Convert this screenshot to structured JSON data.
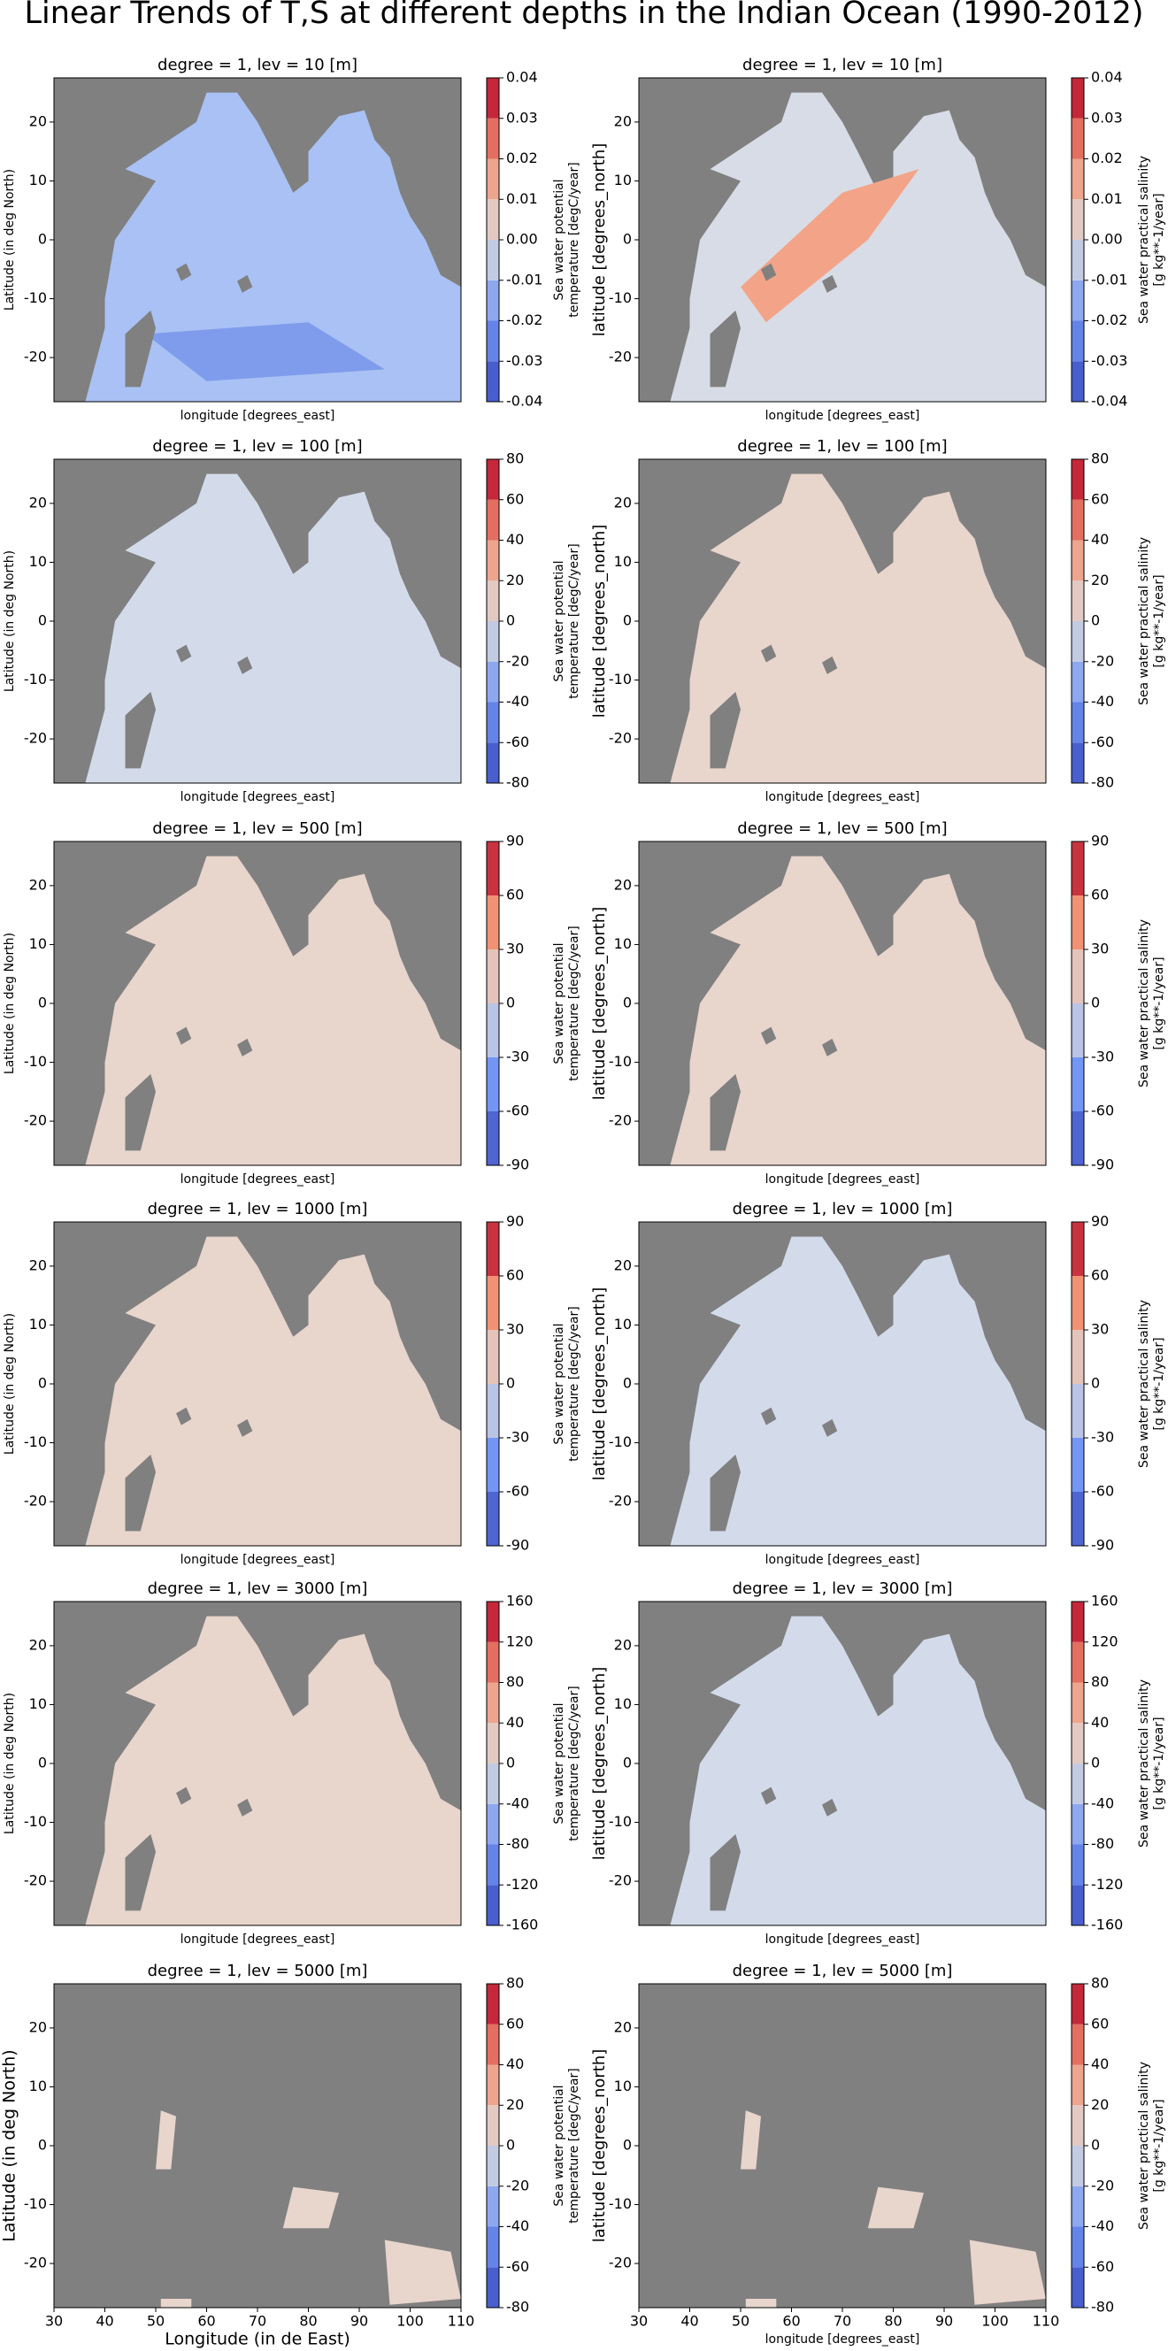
{
  "title": "Linear Trends of T,S at different depths in the Indian Ocean (1990-2012)",
  "chart_data": [
    {
      "type": "contour",
      "title": "degree = 1, lev = 10 [m]",
      "xlabel": "longitude [degrees_east]",
      "ylabel": "Latitude (in deg North)",
      "xlim": [
        30,
        110
      ],
      "ylim": [
        -27.5,
        27.5
      ],
      "yticks": [
        -20,
        -10,
        0,
        10,
        20
      ],
      "colorbar": {
        "label": [
          "Sea water potential",
          "temperature [degC/year]"
        ],
        "colormap": "coolwarm",
        "lim": [
          -0.04,
          0.04
        ],
        "ticks": [
          -0.04,
          -0.03,
          -0.02,
          -0.01,
          {
            "value": 0,
            "label": "0.00"
          },
          0.01,
          0.02,
          0.03,
          0.04
        ]
      }
    },
    {
      "type": "contour",
      "title": "degree = 1, lev = 10 [m]",
      "xlabel": "longitude [degrees_east]",
      "ylabel": "latitude [degrees_north]",
      "xlim": [
        30,
        110
      ],
      "ylim": [
        -27.5,
        27.5
      ],
      "yticks": [
        -20,
        -10,
        0,
        10,
        20
      ],
      "colorbar": {
        "label": [
          "Sea water practical salinity",
          "[g kg**-1/year]"
        ],
        "colormap": "coolwarm",
        "lim": [
          -0.04,
          0.04
        ],
        "ticks": [
          -0.04,
          -0.03,
          -0.02,
          -0.01,
          {
            "value": 0,
            "label": "0.00"
          },
          0.01,
          0.02,
          0.03,
          0.04
        ]
      }
    },
    {
      "type": "contour",
      "title": "degree = 1, lev = 100 [m]",
      "xlabel": "longitude [degrees_east]",
      "ylabel": "Latitude (in deg North)",
      "xlim": [
        30,
        110
      ],
      "ylim": [
        -27.5,
        27.5
      ],
      "yticks": [
        -20,
        -10,
        0,
        10,
        20
      ],
      "colorbar": {
        "label": [
          "Sea water potential",
          "temperature [degC/year]"
        ],
        "colormap": "coolwarm",
        "lim": [
          -80,
          80
        ],
        "ticks": [
          -80,
          -60,
          -40,
          -20,
          0,
          20,
          40,
          60,
          80
        ]
      }
    },
    {
      "type": "contour",
      "title": "degree = 1, lev = 100 [m]",
      "xlabel": "longitude [degrees_east]",
      "ylabel": "latitude [degrees_north]",
      "xlim": [
        30,
        110
      ],
      "ylim": [
        -27.5,
        27.5
      ],
      "yticks": [
        -20,
        -10,
        0,
        10,
        20
      ],
      "colorbar": {
        "label": [
          "Sea water practical salinity",
          "[g kg**-1/year]"
        ],
        "colormap": "coolwarm",
        "lim": [
          -80,
          80
        ],
        "ticks": [
          -80,
          -60,
          -40,
          -20,
          0,
          20,
          40,
          60,
          80
        ]
      }
    },
    {
      "type": "contour",
      "title": "degree = 1, lev = 500 [m]",
      "xlabel": "longitude [degrees_east]",
      "ylabel": "Latitude (in deg North)",
      "xlim": [
        30,
        110
      ],
      "ylim": [
        -27.5,
        27.5
      ],
      "yticks": [
        -20,
        -10,
        0,
        10,
        20
      ],
      "colorbar": {
        "label": [
          "Sea water potential",
          "temperature [degC/year]"
        ],
        "colormap": "coolwarm",
        "lim": [
          -90,
          90
        ],
        "ticks": [
          -90,
          -60,
          -30,
          0,
          30,
          60,
          90
        ]
      }
    },
    {
      "type": "contour",
      "title": "degree = 1, lev = 500 [m]",
      "xlabel": "longitude [degrees_east]",
      "ylabel": "latitude [degrees_north]",
      "xlim": [
        30,
        110
      ],
      "ylim": [
        -27.5,
        27.5
      ],
      "yticks": [
        -20,
        -10,
        0,
        10,
        20
      ],
      "colorbar": {
        "label": [
          "Sea water practical salinity",
          "[g kg**-1/year]"
        ],
        "colormap": "coolwarm",
        "lim": [
          -90,
          90
        ],
        "ticks": [
          -90,
          -60,
          -30,
          0,
          30,
          60,
          90
        ]
      }
    },
    {
      "type": "contour",
      "title": "degree = 1, lev = 1000 [m]",
      "xlabel": "longitude [degrees_east]",
      "ylabel": "Latitude (in deg North)",
      "xlim": [
        30,
        110
      ],
      "ylim": [
        -27.5,
        27.5
      ],
      "yticks": [
        -20,
        -10,
        0,
        10,
        20
      ],
      "colorbar": {
        "label": [
          "Sea water potential",
          "temperature [degC/year]"
        ],
        "colormap": "coolwarm",
        "lim": [
          -90,
          90
        ],
        "ticks": [
          -90,
          -60,
          -30,
          0,
          30,
          60,
          90
        ]
      }
    },
    {
      "type": "contour",
      "title": "degree = 1, lev = 1000 [m]",
      "xlabel": "longitude [degrees_east]",
      "ylabel": "latitude [degrees_north]",
      "xlim": [
        30,
        110
      ],
      "ylim": [
        -27.5,
        27.5
      ],
      "yticks": [
        -20,
        -10,
        0,
        10,
        20
      ],
      "colorbar": {
        "label": [
          "Sea water practical salinity",
          "[g kg**-1/year]"
        ],
        "colormap": "coolwarm",
        "lim": [
          -90,
          90
        ],
        "ticks": [
          -90,
          -60,
          -30,
          0,
          30,
          60,
          90
        ]
      }
    },
    {
      "type": "contour",
      "title": "degree = 1, lev = 3000 [m]",
      "xlabel": "longitude [degrees_east]",
      "ylabel": "Latitude (in deg North)",
      "xlim": [
        30,
        110
      ],
      "ylim": [
        -27.5,
        27.5
      ],
      "yticks": [
        -20,
        -10,
        0,
        10,
        20
      ],
      "colorbar": {
        "label": [
          "Sea water potential",
          "temperature [degC/year]"
        ],
        "colormap": "coolwarm",
        "lim": [
          -160,
          160
        ],
        "ticks": [
          -160,
          -120,
          -80,
          -40,
          0,
          40,
          80,
          120,
          160
        ]
      }
    },
    {
      "type": "contour",
      "title": "degree = 1, lev = 3000 [m]",
      "xlabel": "longitude [degrees_east]",
      "ylabel": "latitude [degrees_north]",
      "xlim": [
        30,
        110
      ],
      "ylim": [
        -27.5,
        27.5
      ],
      "yticks": [
        -20,
        -10,
        0,
        10,
        20
      ],
      "colorbar": {
        "label": [
          "Sea water practical salinity",
          "[g kg**-1/year]"
        ],
        "colormap": "coolwarm",
        "lim": [
          -160,
          160
        ],
        "ticks": [
          -160,
          -120,
          -80,
          -40,
          0,
          40,
          80,
          120,
          160
        ]
      }
    },
    {
      "type": "contour",
      "title": "degree = 1, lev = 5000 [m]",
      "xlabel": "Longitude (in de East)",
      "ylabel": "Latitude (in deg North)",
      "xlim": [
        30,
        110
      ],
      "ylim": [
        -27.5,
        27.5
      ],
      "yticks": [
        -20,
        -10,
        0,
        10,
        20
      ],
      "xticks": [
        30,
        40,
        50,
        60,
        70,
        80,
        90,
        100,
        110
      ],
      "colorbar": {
        "label": [
          "Sea water potential",
          "temperature [degC/year]"
        ],
        "colormap": "coolwarm",
        "lim": [
          -80,
          80
        ],
        "ticks": [
          -80,
          -60,
          -40,
          -20,
          0,
          20,
          40,
          60,
          80
        ]
      }
    },
    {
      "type": "contour",
      "title": "degree = 1, lev = 5000 [m]",
      "xlabel": "longitude [degrees_east]",
      "ylabel": "latitude [degrees_north]",
      "xlim": [
        30,
        110
      ],
      "ylim": [
        -27.5,
        27.5
      ],
      "yticks": [
        -20,
        -10,
        0,
        10,
        20
      ],
      "xticks": [
        30,
        40,
        50,
        60,
        70,
        80,
        90,
        100,
        110
      ],
      "colorbar": {
        "label": [
          "Sea water practical salinity",
          "[g kg**-1/year]"
        ],
        "colormap": "coolwarm",
        "lim": [
          -80,
          80
        ],
        "ticks": [
          -80,
          -60,
          -40,
          -20,
          0,
          20,
          40,
          60,
          80
        ]
      }
    }
  ]
}
